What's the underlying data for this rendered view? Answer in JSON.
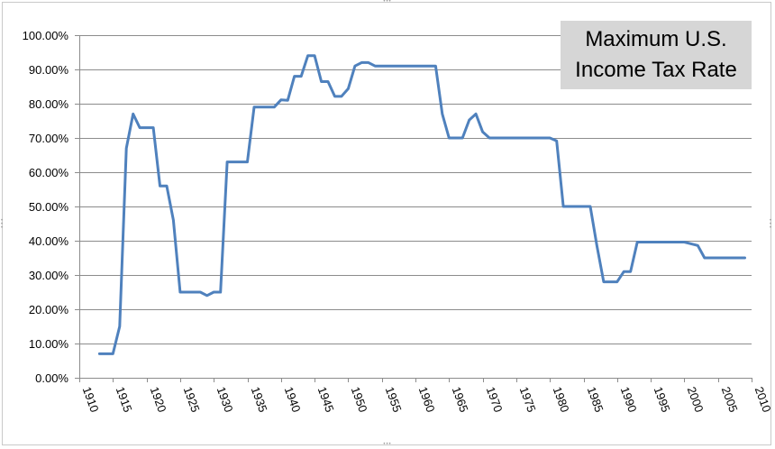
{
  "chart_data": {
    "type": "line",
    "title_lines": [
      "Maximum U.S.",
      "Income Tax Rate"
    ],
    "xlabel": "",
    "ylabel": "",
    "xlim": [
      1910,
      2010
    ],
    "ylim": [
      0,
      100
    ],
    "grid": true,
    "legend": "none",
    "x_ticks": [
      "1910",
      "1915",
      "1920",
      "1925",
      "1930",
      "1935",
      "1940",
      "1945",
      "1950",
      "1955",
      "1960",
      "1965",
      "1970",
      "1975",
      "1980",
      "1985",
      "1990",
      "1995",
      "2000",
      "2005",
      "2010"
    ],
    "y_ticks": [
      "0.00%",
      "10.00%",
      "20.00%",
      "30.00%",
      "40.00%",
      "50.00%",
      "60.00%",
      "70.00%",
      "80.00%",
      "90.00%",
      "100.00%"
    ],
    "series": [
      {
        "color": "#4f81bd",
        "x": [
          1913,
          1914,
          1915,
          1916,
          1917,
          1918,
          1919,
          1920,
          1921,
          1922,
          1923,
          1924,
          1925,
          1926,
          1927,
          1928,
          1929,
          1930,
          1931,
          1932,
          1933,
          1934,
          1935,
          1936,
          1937,
          1938,
          1939,
          1940,
          1941,
          1942,
          1943,
          1944,
          1945,
          1946,
          1947,
          1948,
          1949,
          1950,
          1951,
          1952,
          1953,
          1954,
          1955,
          1956,
          1957,
          1958,
          1959,
          1960,
          1961,
          1962,
          1963,
          1964,
          1965,
          1966,
          1967,
          1968,
          1969,
          1970,
          1971,
          1972,
          1973,
          1974,
          1975,
          1976,
          1977,
          1978,
          1979,
          1980,
          1981,
          1982,
          1983,
          1984,
          1985,
          1986,
          1987,
          1988,
          1989,
          1990,
          1991,
          1992,
          1993,
          1994,
          1995,
          1996,
          1997,
          1998,
          1999,
          2000,
          2001,
          2002,
          2003,
          2004,
          2005,
          2006,
          2007,
          2008,
          2009
        ],
        "values": [
          7,
          7,
          7,
          15,
          67,
          77,
          73,
          73,
          73,
          56,
          56,
          46,
          25,
          25,
          25,
          25,
          24,
          25,
          25,
          63,
          63,
          63,
          63,
          79,
          79,
          79,
          79,
          81.1,
          81,
          88,
          88,
          94,
          94,
          86.45,
          86.45,
          82.13,
          82.13,
          84.36,
          91,
          92,
          92,
          91,
          91,
          91,
          91,
          91,
          91,
          91,
          91,
          91,
          91,
          77,
          70,
          70,
          70,
          75.25,
          77,
          71.75,
          70,
          70,
          70,
          70,
          70,
          70,
          70,
          70,
          70,
          70,
          69.13,
          50,
          50,
          50,
          50,
          50,
          38.5,
          28,
          28,
          28,
          31,
          31,
          39.6,
          39.6,
          39.6,
          39.6,
          39.6,
          39.6,
          39.6,
          39.6,
          39.1,
          38.6,
          35,
          35,
          35,
          35,
          35,
          35,
          35
        ]
      }
    ]
  }
}
